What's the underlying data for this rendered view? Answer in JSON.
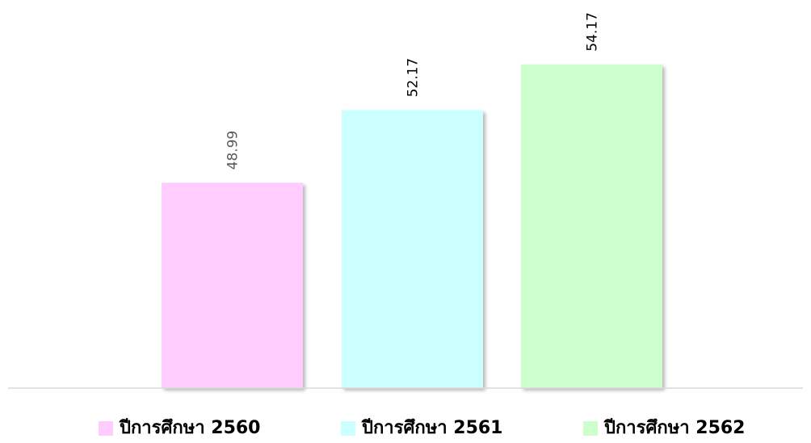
{
  "chart_data": {
    "type": "bar",
    "categories": [
      "ปีการศึกษา 2560",
      "ปีการศึกษา 2561",
      "ปีการศึกษา 2562"
    ],
    "values": [
      48.99,
      52.17,
      54.17
    ],
    "value_labels": [
      "48.99",
      "52.17",
      "54.17"
    ],
    "title": "",
    "xlabel": "",
    "ylabel": "",
    "ylim": [
      40,
      56
    ],
    "grid": false,
    "legend_position": "bottom",
    "colors": [
      "#FFCCFF",
      "#CCFFFF",
      "#CCFFCC"
    ],
    "label_colors": [
      "#595959",
      "#000000",
      "#000000"
    ],
    "axis_color": "#D9D9D9"
  }
}
